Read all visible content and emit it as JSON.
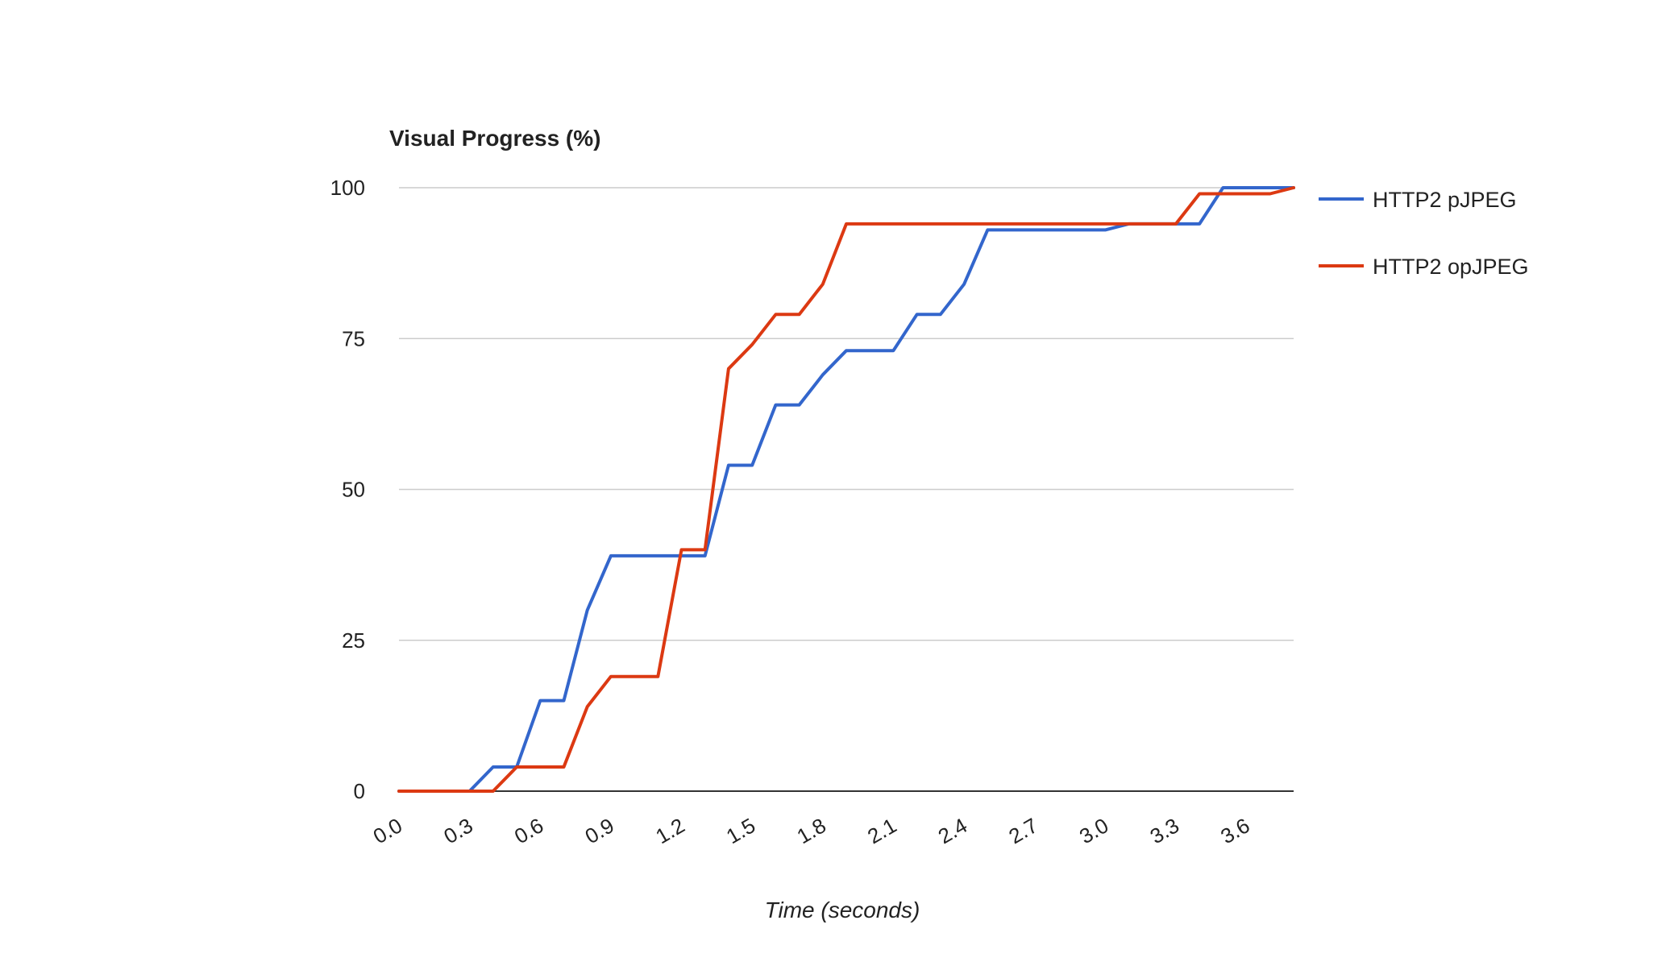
{
  "chart_data": {
    "type": "line",
    "title": "Visual Progress (%)",
    "xlabel": "Time (seconds)",
    "ylabel": "",
    "xlim": [
      0.0,
      3.8
    ],
    "ylim": [
      0,
      100
    ],
    "x_ticks": [
      "0.0",
      "0.3",
      "0.6",
      "0.9",
      "1.2",
      "1.5",
      "1.8",
      "2.1",
      "2.4",
      "2.7",
      "3.0",
      "3.3",
      "3.6"
    ],
    "y_ticks": [
      "0",
      "25",
      "50",
      "75",
      "100"
    ],
    "grid": true,
    "legend_position": "right",
    "series": [
      {
        "name": "HTTP2 pJPEG",
        "color": "#3366cc",
        "x": [
          0.0,
          0.1,
          0.2,
          0.3,
          0.4,
          0.5,
          0.6,
          0.7,
          0.8,
          0.9,
          1.0,
          1.1,
          1.2,
          1.3,
          1.4,
          1.5,
          1.6,
          1.7,
          1.8,
          1.9,
          2.0,
          2.1,
          2.2,
          2.3,
          2.4,
          2.5,
          2.6,
          2.7,
          2.8,
          2.9,
          3.0,
          3.1,
          3.2,
          3.3,
          3.4,
          3.5,
          3.6,
          3.7,
          3.8
        ],
        "y": [
          0,
          0,
          0,
          0,
          4,
          4,
          15,
          15,
          30,
          39,
          39,
          39,
          39,
          39,
          54,
          54,
          64,
          64,
          69,
          73,
          73,
          73,
          79,
          79,
          84,
          93,
          93,
          93,
          93,
          93,
          93,
          94,
          94,
          94,
          94,
          100,
          100,
          100,
          100
        ]
      },
      {
        "name": "HTTP2 opJPEG",
        "color": "#dc3912",
        "x": [
          0.0,
          0.1,
          0.2,
          0.3,
          0.4,
          0.5,
          0.6,
          0.7,
          0.8,
          0.9,
          1.0,
          1.1,
          1.2,
          1.3,
          1.4,
          1.5,
          1.6,
          1.7,
          1.8,
          1.9,
          2.0,
          2.1,
          2.2,
          2.3,
          2.4,
          2.5,
          2.6,
          2.7,
          2.8,
          2.9,
          3.0,
          3.1,
          3.2,
          3.3,
          3.4,
          3.5,
          3.6,
          3.7,
          3.8
        ],
        "y": [
          0,
          0,
          0,
          0,
          0,
          4,
          4,
          4,
          14,
          19,
          19,
          19,
          40,
          40,
          70,
          74,
          79,
          79,
          84,
          94,
          94,
          94,
          94,
          94,
          94,
          94,
          94,
          94,
          94,
          94,
          94,
          94,
          94,
          94,
          99,
          99,
          99,
          99,
          100
        ]
      }
    ]
  }
}
